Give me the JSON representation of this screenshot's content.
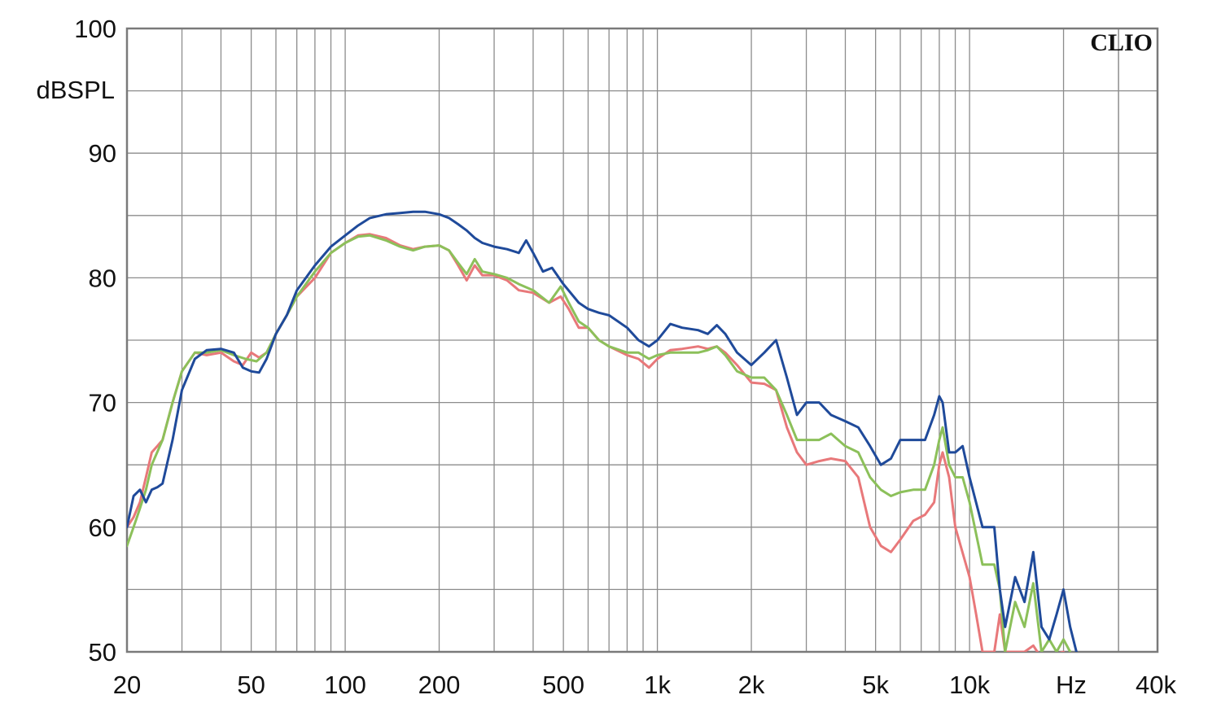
{
  "chart_data": {
    "type": "line",
    "brand": "CLIO",
    "ylabel": "dBSPL",
    "xunit_label": "Hz",
    "xscale": "log",
    "xlim": [
      20,
      40000
    ],
    "ylim": [
      50,
      100
    ],
    "grid": true,
    "y_ticks": [
      {
        "value": 100,
        "label": "100"
      },
      {
        "value": 90,
        "label": "90"
      },
      {
        "value": 80,
        "label": "80"
      },
      {
        "value": 70,
        "label": "70"
      },
      {
        "value": 60,
        "label": "60"
      },
      {
        "value": 50,
        "label": "50"
      }
    ],
    "x_ticks": [
      {
        "value": 20,
        "label": "20"
      },
      {
        "value": 50,
        "label": "50"
      },
      {
        "value": 100,
        "label": "100"
      },
      {
        "value": 200,
        "label": "200"
      },
      {
        "value": 500,
        "label": "500"
      },
      {
        "value": 1000,
        "label": "1k"
      },
      {
        "value": 2000,
        "label": "2k"
      },
      {
        "value": 5000,
        "label": "5k"
      },
      {
        "value": 10000,
        "label": "10k"
      },
      {
        "value": 40000,
        "label": "40k"
      }
    ],
    "series": [
      {
        "color": "#e8787a",
        "points": [
          [
            20,
            60
          ],
          [
            21,
            60.8
          ],
          [
            22,
            62
          ],
          [
            23,
            64
          ],
          [
            24,
            66
          ],
          [
            25,
            66.5
          ],
          [
            26,
            67
          ],
          [
            28,
            70
          ],
          [
            30,
            72.5
          ],
          [
            33,
            74
          ],
          [
            36,
            73.8
          ],
          [
            40,
            74
          ],
          [
            44,
            73.3
          ],
          [
            47,
            73
          ],
          [
            50,
            74
          ],
          [
            53,
            73.6
          ],
          [
            56,
            74
          ],
          [
            60,
            75.5
          ],
          [
            65,
            77
          ],
          [
            70,
            78.5
          ],
          [
            80,
            80
          ],
          [
            90,
            82
          ],
          [
            100,
            82.8
          ],
          [
            110,
            83.4
          ],
          [
            120,
            83.5
          ],
          [
            135,
            83.2
          ],
          [
            150,
            82.6
          ],
          [
            165,
            82.3
          ],
          [
            180,
            82.5
          ],
          [
            200,
            82.6
          ],
          [
            215,
            82.2
          ],
          [
            230,
            81
          ],
          [
            245,
            79.8
          ],
          [
            260,
            81
          ],
          [
            275,
            80.2
          ],
          [
            300,
            80.2
          ],
          [
            330,
            79.8
          ],
          [
            360,
            79
          ],
          [
            400,
            78.8
          ],
          [
            450,
            78
          ],
          [
            490,
            78.5
          ],
          [
            520,
            77.5
          ],
          [
            560,
            76
          ],
          [
            600,
            76
          ],
          [
            650,
            75
          ],
          [
            700,
            74.5
          ],
          [
            800,
            73.8
          ],
          [
            870,
            73.5
          ],
          [
            940,
            72.8
          ],
          [
            1000,
            73.5
          ],
          [
            1100,
            74.2
          ],
          [
            1200,
            74.3
          ],
          [
            1350,
            74.5
          ],
          [
            1450,
            74.3
          ],
          [
            1550,
            74.5
          ],
          [
            1650,
            74
          ],
          [
            1800,
            73
          ],
          [
            2000,
            71.6
          ],
          [
            2200,
            71.5
          ],
          [
            2400,
            71
          ],
          [
            2600,
            68
          ],
          [
            2800,
            66
          ],
          [
            3000,
            65
          ],
          [
            3300,
            65.3
          ],
          [
            3600,
            65.5
          ],
          [
            4000,
            65.3
          ],
          [
            4400,
            64
          ],
          [
            4800,
            60
          ],
          [
            5200,
            58.5
          ],
          [
            5600,
            58
          ],
          [
            6000,
            59
          ],
          [
            6600,
            60.5
          ],
          [
            7200,
            61
          ],
          [
            7700,
            62
          ],
          [
            8000,
            65
          ],
          [
            8200,
            66
          ],
          [
            8600,
            64
          ],
          [
            9000,
            60
          ],
          [
            10000,
            56
          ],
          [
            10500,
            53
          ],
          [
            11000,
            50
          ],
          [
            12000,
            50
          ],
          [
            12500,
            53
          ],
          [
            13000,
            50
          ],
          [
            15000,
            50
          ],
          [
            16000,
            50.5
          ],
          [
            17000,
            49.5
          ],
          [
            20000,
            50
          ]
        ]
      },
      {
        "color": "#8cc05a",
        "points": [
          [
            20,
            58.5
          ],
          [
            21,
            60
          ],
          [
            22,
            61.5
          ],
          [
            23,
            63
          ],
          [
            24,
            65
          ],
          [
            26,
            67
          ],
          [
            28,
            70
          ],
          [
            30,
            72.5
          ],
          [
            33,
            74
          ],
          [
            36,
            74
          ],
          [
            40,
            74.2
          ],
          [
            44,
            73.8
          ],
          [
            48,
            73.5
          ],
          [
            52,
            73.3
          ],
          [
            56,
            74
          ],
          [
            60,
            75.5
          ],
          [
            65,
            77
          ],
          [
            70,
            78.5
          ],
          [
            80,
            80.5
          ],
          [
            90,
            82
          ],
          [
            100,
            82.8
          ],
          [
            110,
            83.3
          ],
          [
            120,
            83.4
          ],
          [
            135,
            83
          ],
          [
            150,
            82.5
          ],
          [
            165,
            82.2
          ],
          [
            180,
            82.5
          ],
          [
            200,
            82.6
          ],
          [
            215,
            82.2
          ],
          [
            230,
            81.2
          ],
          [
            245,
            80.3
          ],
          [
            260,
            81.5
          ],
          [
            275,
            80.5
          ],
          [
            300,
            80.3
          ],
          [
            330,
            80
          ],
          [
            360,
            79.5
          ],
          [
            400,
            79
          ],
          [
            450,
            78
          ],
          [
            490,
            79.3
          ],
          [
            520,
            78
          ],
          [
            560,
            76.5
          ],
          [
            600,
            76
          ],
          [
            650,
            75
          ],
          [
            700,
            74.5
          ],
          [
            800,
            74
          ],
          [
            870,
            74
          ],
          [
            940,
            73.5
          ],
          [
            1000,
            73.8
          ],
          [
            1100,
            74
          ],
          [
            1200,
            74
          ],
          [
            1350,
            74
          ],
          [
            1450,
            74.2
          ],
          [
            1550,
            74.5
          ],
          [
            1650,
            73.8
          ],
          [
            1800,
            72.5
          ],
          [
            2000,
            72
          ],
          [
            2200,
            72
          ],
          [
            2400,
            71
          ],
          [
            2600,
            69
          ],
          [
            2800,
            67
          ],
          [
            3000,
            67
          ],
          [
            3300,
            67
          ],
          [
            3600,
            67.5
          ],
          [
            4000,
            66.5
          ],
          [
            4400,
            66
          ],
          [
            4800,
            64
          ],
          [
            5200,
            63
          ],
          [
            5600,
            62.5
          ],
          [
            6000,
            62.8
          ],
          [
            6600,
            63
          ],
          [
            7200,
            63
          ],
          [
            7700,
            65
          ],
          [
            8000,
            67
          ],
          [
            8200,
            68
          ],
          [
            8600,
            65
          ],
          [
            9000,
            64
          ],
          [
            9500,
            64
          ],
          [
            10000,
            62
          ],
          [
            11000,
            57
          ],
          [
            12000,
            57
          ],
          [
            12500,
            55
          ],
          [
            13000,
            50
          ],
          [
            14000,
            54
          ],
          [
            15000,
            52
          ],
          [
            16000,
            55.5
          ],
          [
            17000,
            50
          ],
          [
            18000,
            51
          ],
          [
            19000,
            50
          ],
          [
            20000,
            51
          ],
          [
            21000,
            50
          ]
        ]
      },
      {
        "color": "#1f4a9a",
        "points": [
          [
            20,
            60
          ],
          [
            21,
            62.5
          ],
          [
            22,
            63
          ],
          [
            23,
            62
          ],
          [
            24,
            63
          ],
          [
            25,
            63.2
          ],
          [
            26,
            63.5
          ],
          [
            28,
            67
          ],
          [
            30,
            71
          ],
          [
            33,
            73.5
          ],
          [
            36,
            74.2
          ],
          [
            40,
            74.3
          ],
          [
            44,
            74
          ],
          [
            47,
            72.8
          ],
          [
            50,
            72.5
          ],
          [
            53,
            72.4
          ],
          [
            56,
            73.5
          ],
          [
            60,
            75.5
          ],
          [
            65,
            77
          ],
          [
            70,
            79
          ],
          [
            80,
            81
          ],
          [
            90,
            82.5
          ],
          [
            100,
            83.4
          ],
          [
            110,
            84.2
          ],
          [
            120,
            84.8
          ],
          [
            135,
            85.1
          ],
          [
            150,
            85.2
          ],
          [
            165,
            85.3
          ],
          [
            180,
            85.3
          ],
          [
            200,
            85.1
          ],
          [
            215,
            84.8
          ],
          [
            230,
            84.3
          ],
          [
            245,
            83.8
          ],
          [
            260,
            83.2
          ],
          [
            275,
            82.8
          ],
          [
            300,
            82.5
          ],
          [
            330,
            82.3
          ],
          [
            360,
            82
          ],
          [
            380,
            83
          ],
          [
            400,
            82
          ],
          [
            430,
            80.5
          ],
          [
            460,
            80.8
          ],
          [
            500,
            79.5
          ],
          [
            560,
            78
          ],
          [
            600,
            77.5
          ],
          [
            650,
            77.2
          ],
          [
            700,
            77
          ],
          [
            800,
            76
          ],
          [
            870,
            75
          ],
          [
            940,
            74.5
          ],
          [
            1000,
            75
          ],
          [
            1100,
            76.3
          ],
          [
            1200,
            76
          ],
          [
            1350,
            75.8
          ],
          [
            1450,
            75.5
          ],
          [
            1550,
            76.2
          ],
          [
            1650,
            75.5
          ],
          [
            1800,
            74
          ],
          [
            2000,
            73
          ],
          [
            2200,
            74
          ],
          [
            2400,
            75
          ],
          [
            2600,
            72
          ],
          [
            2800,
            69
          ],
          [
            3000,
            70
          ],
          [
            3300,
            70
          ],
          [
            3600,
            69
          ],
          [
            4000,
            68.5
          ],
          [
            4400,
            68
          ],
          [
            4800,
            66.5
          ],
          [
            5200,
            65
          ],
          [
            5600,
            65.5
          ],
          [
            6000,
            67
          ],
          [
            6600,
            67
          ],
          [
            7200,
            67
          ],
          [
            7700,
            69
          ],
          [
            8000,
            70.5
          ],
          [
            8200,
            70
          ],
          [
            8600,
            66
          ],
          [
            9000,
            66
          ],
          [
            9500,
            66.5
          ],
          [
            10000,
            64
          ],
          [
            11000,
            60
          ],
          [
            12000,
            60
          ],
          [
            12500,
            55
          ],
          [
            13000,
            52
          ],
          [
            14000,
            56
          ],
          [
            15000,
            54
          ],
          [
            16000,
            58
          ],
          [
            17000,
            52
          ],
          [
            18000,
            51
          ],
          [
            19000,
            53
          ],
          [
            20000,
            55
          ],
          [
            21000,
            52
          ],
          [
            22000,
            50
          ]
        ]
      }
    ]
  }
}
